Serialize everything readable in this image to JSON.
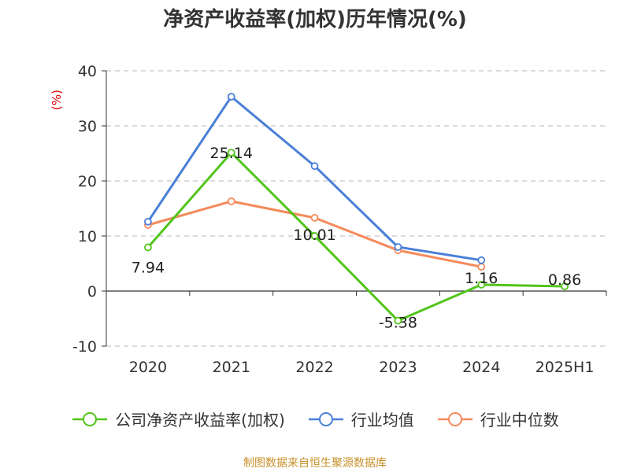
{
  "chart_data": {
    "type": "line",
    "title": "净资产收益率(加权)历年情况(%)",
    "ylabel": "(%)",
    "xlabel": "",
    "categories": [
      "2020",
      "2021",
      "2022",
      "2023",
      "2024",
      "2025H1"
    ],
    "ylim": [
      -10,
      40
    ],
    "yticks": [
      -10,
      0,
      10,
      20,
      30,
      40
    ],
    "grid": true,
    "legend_position": "bottom",
    "series": [
      {
        "name": "公司净资产收益率(加权)",
        "color": "#52c41a",
        "values": [
          7.94,
          25.14,
          10.01,
          -5.38,
          1.16,
          0.86
        ],
        "labels": [
          "7.94",
          "25.14",
          "10.01",
          "-5.38",
          "1.16",
          "0.86"
        ]
      },
      {
        "name": "行业均值",
        "color": "#4a7fd8",
        "values": [
          12.6,
          35.3,
          22.7,
          8.0,
          5.6,
          null
        ]
      },
      {
        "name": "行业中位数",
        "color": "#f58a5b",
        "values": [
          12.0,
          16.3,
          13.3,
          7.4,
          4.4,
          null
        ]
      }
    ]
  },
  "footer": "制图数据来自恒生聚源数据库"
}
